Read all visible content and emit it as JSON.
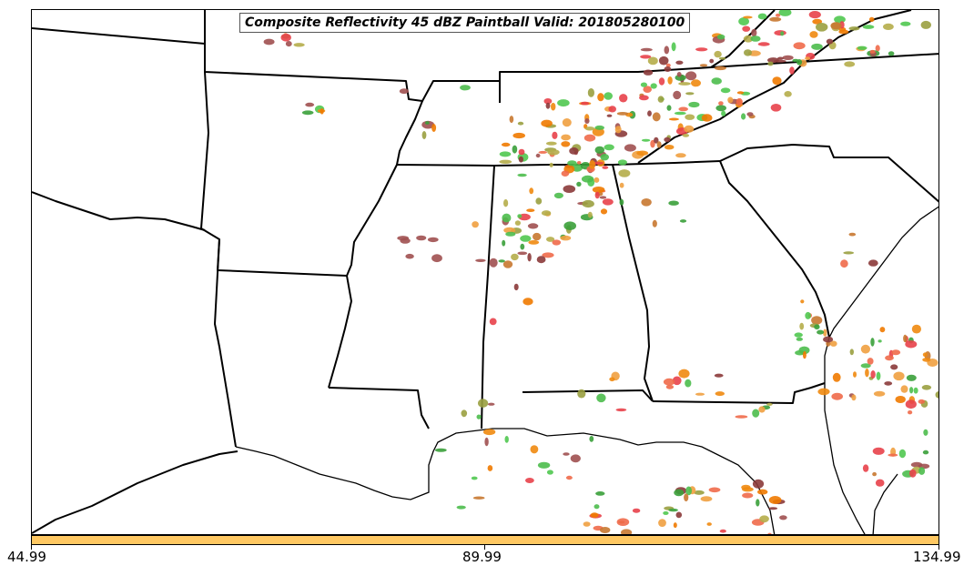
{
  "title": "Composite Reflectivity 45 dBZ Paintball Valid: 201805280100",
  "colorbar": {
    "color": "#ffc862",
    "ticks": [
      "44.99",
      "89.99",
      "134.99"
    ]
  },
  "paintball_colors": [
    "#e8414a",
    "#f06a4a",
    "#f0a040",
    "#f08a10",
    "#ef7a00",
    "#8b3a3a",
    "#a05050",
    "#9aa040",
    "#b5ad4a",
    "#4cbd4c",
    "#50c850",
    "#3aa03a",
    "#c87830"
  ]
}
